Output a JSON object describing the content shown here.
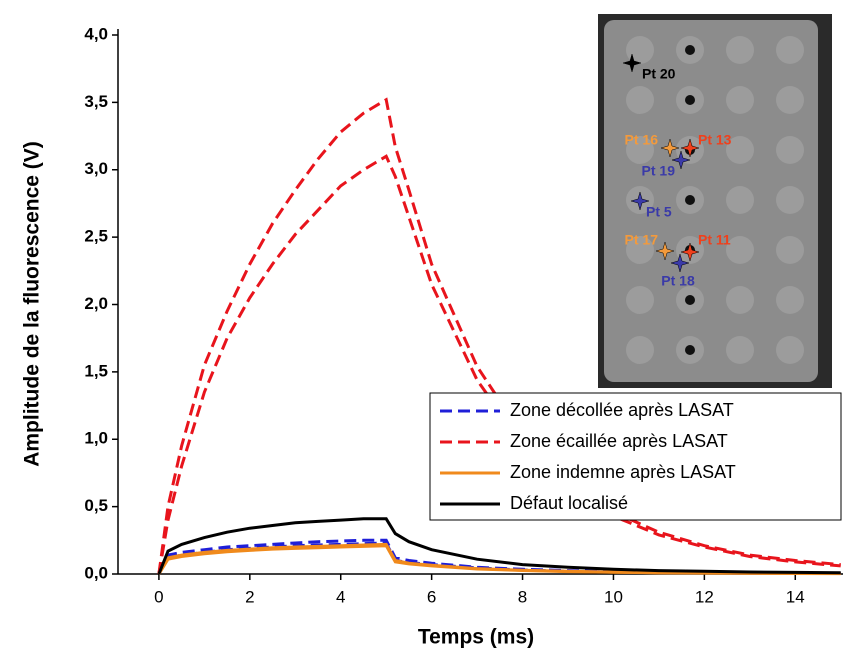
{
  "chart_data": {
    "type": "line",
    "y_label": "Amplitude de la fluorescence (V)",
    "x_label": "Temps (ms)",
    "x": [
      0,
      0.2,
      0.5,
      1,
      1.5,
      2,
      2.5,
      3,
      3.5,
      4,
      4.5,
      5,
      5.2,
      5.5,
      6,
      7,
      8,
      9,
      10,
      11,
      12,
      13,
      14,
      15
    ],
    "series": [
      {
        "name": "Zone décollée après LASAT",
        "color": "#1f1fd8",
        "dash": true,
        "curves": [
          [
            0,
            0.14,
            0.16,
            0.18,
            0.2,
            0.21,
            0.22,
            0.23,
            0.24,
            0.245,
            0.25,
            0.25,
            0.12,
            0.1,
            0.08,
            0.05,
            0.035,
            0.025,
            0.018,
            0.013,
            0.01,
            0.008,
            0.006,
            0.005
          ],
          [
            0,
            0.12,
            0.14,
            0.16,
            0.18,
            0.19,
            0.2,
            0.21,
            0.215,
            0.22,
            0.225,
            0.23,
            0.1,
            0.085,
            0.07,
            0.045,
            0.03,
            0.02,
            0.015,
            0.011,
            0.008,
            0.006,
            0.005,
            0.004
          ]
        ]
      },
      {
        "name": "Zone écaillée après LASAT",
        "color": "#e8141c",
        "dash": true,
        "curves": [
          [
            0,
            0.5,
            0.95,
            1.55,
            1.95,
            2.3,
            2.6,
            2.85,
            3.08,
            3.28,
            3.42,
            3.52,
            3.17,
            2.85,
            2.3,
            1.54,
            1.03,
            0.69,
            0.46,
            0.31,
            0.21,
            0.14,
            0.1,
            0.07
          ],
          [
            0,
            0.4,
            0.8,
            1.35,
            1.75,
            2.05,
            2.3,
            2.52,
            2.7,
            2.88,
            3.0,
            3.1,
            2.95,
            2.65,
            2.15,
            1.44,
            0.96,
            0.64,
            0.43,
            0.29,
            0.2,
            0.13,
            0.09,
            0.06
          ]
        ]
      },
      {
        "name": "Zone indemne après LASAT",
        "color": "#f08a1c",
        "dash": false,
        "curves": [
          [
            0,
            0.12,
            0.14,
            0.16,
            0.175,
            0.185,
            0.195,
            0.2,
            0.205,
            0.21,
            0.215,
            0.22,
            0.1,
            0.08,
            0.065,
            0.04,
            0.028,
            0.02,
            0.014,
            0.01,
            0.008,
            0.006,
            0.005,
            0.004
          ],
          [
            0,
            0.11,
            0.13,
            0.15,
            0.165,
            0.175,
            0.185,
            0.19,
            0.195,
            0.2,
            0.205,
            0.21,
            0.09,
            0.075,
            0.06,
            0.037,
            0.026,
            0.018,
            0.013,
            0.009,
            0.007,
            0.005,
            0.004,
            0.003
          ]
        ]
      },
      {
        "name": "Défaut localisé",
        "color": "#000000",
        "dash": false,
        "curves": [
          [
            0,
            0.17,
            0.22,
            0.27,
            0.31,
            0.34,
            0.36,
            0.38,
            0.39,
            0.4,
            0.41,
            0.41,
            0.3,
            0.24,
            0.18,
            0.11,
            0.07,
            0.05,
            0.035,
            0.025,
            0.02,
            0.015,
            0.012,
            0.01
          ]
        ]
      }
    ],
    "xlim": [
      -0.9,
      15.05
    ],
    "ylim": [
      0,
      4
    ],
    "xticks": [
      0,
      2,
      4,
      6,
      8,
      10,
      12,
      14
    ],
    "yticks": [
      {
        "value": 0,
        "label": "0,0"
      },
      {
        "value": 0.5,
        "label": "0,5"
      },
      {
        "value": 1,
        "label": "1,0"
      },
      {
        "value": 1.5,
        "label": "1,5"
      },
      {
        "value": 2,
        "label": "2,0"
      },
      {
        "value": 2.5,
        "label": "2,5"
      },
      {
        "value": 3,
        "label": "3,0"
      },
      {
        "value": 3.5,
        "label": "3,5"
      },
      {
        "value": 4,
        "label": "4,0"
      }
    ],
    "legend": "lower-right",
    "inset": [
      {
        "label": "Pt 20",
        "color": "#000000"
      },
      {
        "label": "Pt 16",
        "color": "#f39a3c"
      },
      {
        "label": "Pt 13",
        "color": "#f0401c"
      },
      {
        "label": "Pt 19",
        "color": "#3a3aa8"
      },
      {
        "label": "Pt 5",
        "color": "#3a3aa8"
      },
      {
        "label": "Pt 17",
        "color": "#f39a3c"
      },
      {
        "label": "Pt 11",
        "color": "#f0401c"
      },
      {
        "label": "Pt 18",
        "color": "#3a3aa8"
      }
    ]
  }
}
